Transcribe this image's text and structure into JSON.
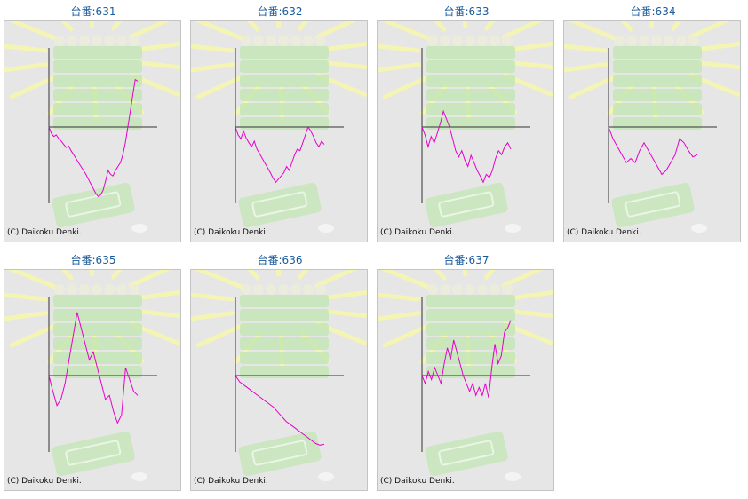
{
  "machines": [
    {
      "title": "台番:631",
      "copyright": "(C) Daikoku Denki."
    },
    {
      "title": "台番:632",
      "copyright": "(C) Daikoku Denki."
    },
    {
      "title": "台番:633",
      "copyright": "(C) Daikoku Denki."
    },
    {
      "title": "台番:634",
      "copyright": "(C) Daikoku Denki."
    },
    {
      "title": "台番:635",
      "copyright": "(C) Daikoku Denki."
    },
    {
      "title": "台番:636",
      "copyright": "(C) Daikoku Denki."
    },
    {
      "title": "台番:637",
      "copyright": "(C) Daikoku Denki."
    }
  ],
  "colors": {
    "line": "#e600cc",
    "axis": "#333333",
    "title": "#1a5a9a",
    "panel_bg": "#e6e6e6",
    "decor_green": "#bfe6b0",
    "decor_rays": "#f4f4b4"
  },
  "chart_data": [
    {
      "type": "line",
      "title": "台番:631",
      "ylim": [
        -100,
        100
      ],
      "values": [
        0,
        -8,
        -12,
        -10,
        -15,
        -18,
        -22,
        -26,
        -24,
        -30,
        -35,
        -40,
        -45,
        -50,
        -55,
        -60,
        -66,
        -72,
        -78,
        -84,
        -88,
        -86,
        -80,
        -68,
        -55,
        -60,
        -62,
        -55,
        -50,
        -45,
        -35,
        -20,
        0,
        20,
        40,
        60,
        58
      ]
    },
    {
      "type": "line",
      "title": "台番:632",
      "ylim": [
        -100,
        100
      ],
      "values": [
        0,
        -10,
        -15,
        -5,
        -14,
        -20,
        -25,
        -18,
        -28,
        -34,
        -40,
        -46,
        -52,
        -58,
        -65,
        -70,
        -66,
        -62,
        -58,
        -50,
        -55,
        -45,
        -35,
        -28,
        -30,
        -20,
        -10,
        0,
        -5,
        -12,
        -20,
        -25,
        -18,
        -22
      ]
    },
    {
      "type": "line",
      "title": "台番:633",
      "ylim": [
        -100,
        100
      ],
      "values": [
        0,
        -10,
        -25,
        -12,
        -20,
        -8,
        5,
        20,
        10,
        0,
        -15,
        -30,
        -38,
        -30,
        -42,
        -50,
        -36,
        -45,
        -55,
        -62,
        -70,
        -60,
        -64,
        -55,
        -40,
        -30,
        -35,
        -25,
        -20,
        -28
      ]
    },
    {
      "type": "line",
      "title": "台番:634",
      "ylim": [
        -100,
        100
      ],
      "values": [
        0,
        -15,
        -25,
        -35,
        -45,
        -40,
        -45,
        -30,
        -20,
        -30,
        -40,
        -50,
        -60,
        -55,
        -45,
        -35,
        -15,
        -20,
        -30,
        -38,
        -35
      ]
    },
    {
      "type": "line",
      "title": "台番:635",
      "ylim": [
        -100,
        100
      ],
      "values": [
        0,
        -20,
        -38,
        -30,
        -10,
        20,
        50,
        80,
        60,
        40,
        20,
        30,
        10,
        -10,
        -30,
        -25,
        -45,
        -60,
        -50,
        10,
        -5,
        -20,
        -25
      ]
    },
    {
      "type": "line",
      "title": "台番:636",
      "ylim": [
        -100,
        100
      ],
      "values": [
        0,
        -8,
        -12,
        -16,
        -20,
        -24,
        -28,
        -32,
        -36,
        -40,
        -46,
        -52,
        -58,
        -62,
        -66,
        -70,
        -74,
        -78,
        -82,
        -86,
        -88,
        -87
      ]
    },
    {
      "type": "line",
      "title": "台番:637",
      "ylim": [
        -100,
        100
      ],
      "values": [
        0,
        -10,
        5,
        -5,
        10,
        0,
        -10,
        15,
        35,
        20,
        45,
        30,
        15,
        0,
        -10,
        -20,
        -10,
        -25,
        -15,
        -25,
        -10,
        -28,
        10,
        40,
        15,
        25,
        55,
        60,
        70
      ]
    }
  ]
}
